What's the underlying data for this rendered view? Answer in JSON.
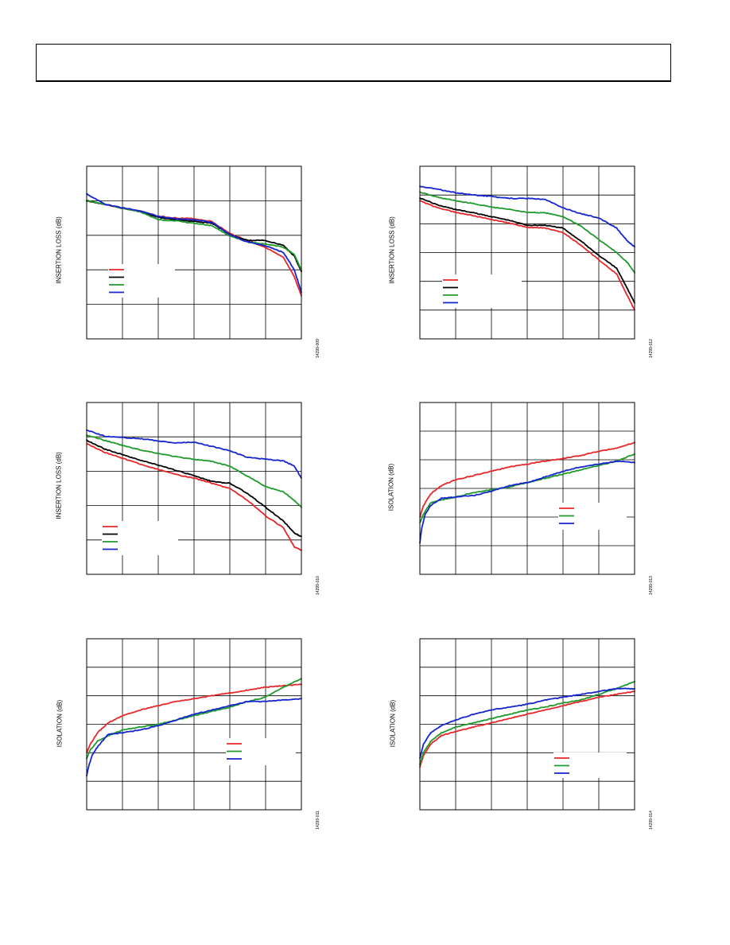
{
  "colors": {
    "red": "#e8262a",
    "black": "#000000",
    "green": "#1e9a2b",
    "blue": "#1525d0"
  },
  "chart_data": [
    {
      "type": "line",
      "ylabel": "INSERTION LOSS (dB)",
      "fig_id": "14299-009",
      "xlim": [
        0,
        6
      ],
      "ylim": [
        -5,
        0
      ],
      "grid": true,
      "legend": "lower-left",
      "series": [
        {
          "color": "red",
          "x": [
            0,
            0.5,
            1,
            1.5,
            2,
            2.5,
            3,
            3.5,
            4,
            4.5,
            5,
            5.5,
            5.8,
            6
          ],
          "y": [
            -1.0,
            -1.1,
            -1.22,
            -1.3,
            -1.45,
            -1.5,
            -1.52,
            -1.6,
            -1.95,
            -2.15,
            -2.35,
            -2.65,
            -3.2,
            -3.75
          ]
        },
        {
          "color": "black",
          "x": [
            0,
            0.5,
            1,
            1.5,
            2,
            2.5,
            3,
            3.5,
            4,
            4.5,
            5,
            5.5,
            5.8,
            6
          ],
          "y": [
            -1.0,
            -1.1,
            -1.22,
            -1.3,
            -1.48,
            -1.55,
            -1.6,
            -1.65,
            -1.98,
            -2.15,
            -2.15,
            -2.3,
            -2.6,
            -3.05
          ]
        },
        {
          "color": "green",
          "x": [
            0,
            0.5,
            1,
            1.5,
            2,
            2.5,
            3,
            3.5,
            4,
            4.5,
            5,
            5.5,
            5.8,
            6
          ],
          "y": [
            -1.0,
            -1.1,
            -1.22,
            -1.32,
            -1.55,
            -1.58,
            -1.65,
            -1.72,
            -2.02,
            -2.2,
            -2.25,
            -2.35,
            -2.55,
            -3.0
          ]
        },
        {
          "color": "blue",
          "x": [
            0,
            0.5,
            1,
            1.5,
            2,
            2.5,
            3,
            3.5,
            4,
            4.5,
            5,
            5.5,
            5.8,
            6
          ],
          "y": [
            -0.8,
            -1.1,
            -1.2,
            -1.3,
            -1.45,
            -1.52,
            -1.55,
            -1.62,
            -1.98,
            -2.2,
            -2.3,
            -2.5,
            -3.0,
            -3.65
          ]
        }
      ]
    },
    {
      "type": "line",
      "ylabel": "INSERTION LOSS (dB)",
      "fig_id": "14299-012",
      "xlim": [
        0,
        6
      ],
      "ylim": [
        -6,
        0
      ],
      "grid": true,
      "legend": "lower-left",
      "series": [
        {
          "color": "red",
          "x": [
            0,
            0.5,
            1,
            1.5,
            2,
            2.5,
            3,
            3.5,
            4,
            4.5,
            5,
            5.5,
            5.8,
            6
          ],
          "y": [
            -1.2,
            -1.45,
            -1.6,
            -1.72,
            -1.85,
            -1.98,
            -2.12,
            -2.15,
            -2.3,
            -2.75,
            -3.25,
            -3.75,
            -4.5,
            -5.0
          ]
        },
        {
          "color": "black",
          "x": [
            0,
            0.5,
            1,
            1.5,
            2,
            2.5,
            3,
            3.5,
            4,
            4.5,
            5,
            5.5,
            5.8,
            6
          ],
          "y": [
            -1.1,
            -1.35,
            -1.5,
            -1.62,
            -1.75,
            -1.88,
            -2.05,
            -2.05,
            -2.15,
            -2.6,
            -3.1,
            -3.55,
            -4.25,
            -4.75
          ]
        },
        {
          "color": "green",
          "x": [
            0,
            0.5,
            1,
            1.5,
            2,
            2.5,
            3,
            3.5,
            4,
            4.5,
            5,
            5.5,
            5.8,
            6
          ],
          "y": [
            -0.9,
            -1.08,
            -1.2,
            -1.3,
            -1.42,
            -1.5,
            -1.6,
            -1.62,
            -1.75,
            -2.08,
            -2.55,
            -3.0,
            -3.35,
            -3.7
          ]
        },
        {
          "color": "blue",
          "x": [
            0,
            0.5,
            1,
            1.5,
            2,
            2.5,
            3,
            3.5,
            4,
            4.5,
            5,
            5.5,
            5.8,
            6
          ],
          "y": [
            -0.7,
            -0.8,
            -0.92,
            -1.0,
            -1.05,
            -1.12,
            -1.12,
            -1.15,
            -1.45,
            -1.65,
            -1.8,
            -2.15,
            -2.6,
            -2.8
          ]
        }
      ]
    },
    {
      "type": "line",
      "ylabel": "INSERTION LOSS (dB)",
      "fig_id": "14299-010",
      "xlim": [
        0,
        6
      ],
      "ylim": [
        -5,
        0
      ],
      "grid": true,
      "legend": "lower-left",
      "series": [
        {
          "color": "red",
          "x": [
            0,
            0.5,
            1,
            1.5,
            2,
            2.5,
            3,
            3.5,
            4,
            4.5,
            5,
            5.5,
            5.8,
            6
          ],
          "y": [
            -1.2,
            -1.45,
            -1.62,
            -1.8,
            -1.95,
            -2.1,
            -2.2,
            -2.35,
            -2.5,
            -2.85,
            -3.3,
            -3.65,
            -4.2,
            -4.3
          ]
        },
        {
          "color": "black",
          "x": [
            0,
            0.5,
            1,
            1.5,
            2,
            2.5,
            3,
            3.5,
            4,
            4.5,
            5,
            5.5,
            5.8,
            6
          ],
          "y": [
            -1.1,
            -1.35,
            -1.52,
            -1.68,
            -1.82,
            -1.98,
            -2.12,
            -2.3,
            -2.35,
            -2.65,
            -3.05,
            -3.45,
            -3.8,
            -3.9
          ]
        },
        {
          "color": "green",
          "x": [
            0,
            0.5,
            1,
            1.5,
            2,
            2.5,
            3,
            3.5,
            4,
            4.5,
            5,
            5.5,
            5.8,
            6
          ],
          "y": [
            -0.95,
            -1.1,
            -1.25,
            -1.38,
            -1.48,
            -1.58,
            -1.65,
            -1.72,
            -1.85,
            -2.15,
            -2.45,
            -2.6,
            -2.85,
            -3.05
          ]
        },
        {
          "color": "blue",
          "x": [
            0,
            0.5,
            1,
            1.5,
            2,
            2.5,
            3,
            3.5,
            4,
            4.5,
            5,
            5.5,
            5.8,
            6
          ],
          "y": [
            -0.8,
            -0.98,
            -1.02,
            -1.05,
            -1.12,
            -1.18,
            -1.15,
            -1.28,
            -1.4,
            -1.6,
            -1.65,
            -1.7,
            -1.85,
            -2.2
          ]
        }
      ]
    },
    {
      "type": "line",
      "ylabel": "ISOLATION (dB)",
      "fig_id": "14299-013",
      "xlim": [
        0,
        6
      ],
      "ylim": [
        -60,
        0
      ],
      "grid": true,
      "legend": "lower-right",
      "series": [
        {
          "color": "red",
          "x": [
            0,
            0.1,
            0.3,
            0.6,
            1,
            1.5,
            2,
            2.5,
            3,
            3.5,
            4,
            4.5,
            5,
            5.5,
            6
          ],
          "y": [
            -40,
            -36,
            -32,
            -29,
            -27,
            -25.5,
            -24,
            -22.5,
            -21.5,
            -20.5,
            -19.5,
            -18.5,
            -17,
            -16,
            -14
          ]
        },
        {
          "color": "green",
          "x": [
            0,
            0.1,
            0.3,
            0.6,
            1,
            1.5,
            2,
            2.5,
            3,
            3.5,
            4,
            4.5,
            5,
            5.5,
            6
          ],
          "y": [
            -42,
            -39,
            -35,
            -34,
            -33,
            -31.5,
            -30.5,
            -29.5,
            -28,
            -26.5,
            -25,
            -23.5,
            -22,
            -20.5,
            -18
          ]
        },
        {
          "color": "blue",
          "x": [
            0,
            0.05,
            0.15,
            0.3,
            0.6,
            1,
            1.5,
            2,
            2.5,
            3,
            3.5,
            4,
            4.5,
            5,
            5.5,
            6
          ],
          "y": [
            -49,
            -44,
            -39,
            -36,
            -33.5,
            -33,
            -32.5,
            -31,
            -29,
            -28,
            -26,
            -24,
            -22.5,
            -21.5,
            -20.5,
            -21
          ]
        }
      ]
    },
    {
      "type": "line",
      "ylabel": "ISOLATION (dB)",
      "fig_id": "14299-011",
      "xlim": [
        0,
        6
      ],
      "ylim": [
        -60,
        0
      ],
      "grid": true,
      "legend": "lower-right",
      "series": [
        {
          "color": "red",
          "x": [
            0,
            0.1,
            0.3,
            0.6,
            1,
            1.5,
            2,
            2.5,
            3,
            3.5,
            4,
            4.5,
            5,
            5.5,
            6
          ],
          "y": [
            -40,
            -37,
            -33,
            -29.5,
            -27,
            -25,
            -23.5,
            -22,
            -21,
            -20,
            -19,
            -18,
            -17,
            -16.5,
            -16
          ]
        },
        {
          "color": "green",
          "x": [
            0,
            0.1,
            0.3,
            0.6,
            1,
            1.5,
            2,
            2.5,
            3,
            3.5,
            4,
            4.5,
            5,
            5.5,
            6
          ],
          "y": [
            -42,
            -39,
            -36,
            -34,
            -32,
            -31,
            -30,
            -28.5,
            -27,
            -25.5,
            -24,
            -22,
            -20.5,
            -17,
            -14
          ]
        },
        {
          "color": "blue",
          "x": [
            0,
            0.05,
            0.15,
            0.3,
            0.6,
            1,
            1.5,
            2,
            2.5,
            3,
            3.5,
            4,
            4.5,
            5,
            5.5,
            6
          ],
          "y": [
            -48,
            -45,
            -41,
            -38,
            -33.5,
            -33,
            -32,
            -30.5,
            -28.5,
            -26.5,
            -25,
            -23.5,
            -22,
            -22,
            -21.5,
            -21
          ]
        }
      ]
    },
    {
      "type": "line",
      "ylabel": "ISOLATION (dB)",
      "fig_id": "14299-014",
      "xlim": [
        0,
        6
      ],
      "ylim": [
        -60,
        0
      ],
      "grid": true,
      "legend": "lower-right",
      "series": [
        {
          "color": "red",
          "x": [
            0,
            0.1,
            0.3,
            0.6,
            1,
            1.5,
            2,
            2.5,
            3,
            3.5,
            4,
            4.5,
            5,
            5.5,
            6
          ],
          "y": [
            -45,
            -41,
            -37,
            -34,
            -32.5,
            -31,
            -29.5,
            -28,
            -26.5,
            -25,
            -23.5,
            -22,
            -20.5,
            -19.5,
            -18.5
          ]
        },
        {
          "color": "green",
          "x": [
            0,
            0.1,
            0.3,
            0.6,
            1,
            1.5,
            2,
            2.5,
            3,
            3.5,
            4,
            4.5,
            5,
            5.5,
            6
          ],
          "y": [
            -44,
            -40,
            -36,
            -33,
            -31,
            -29.5,
            -28,
            -26.5,
            -25,
            -24,
            -22.5,
            -21.5,
            -19.5,
            -17.5,
            -15
          ]
        },
        {
          "color": "blue",
          "x": [
            0,
            0.1,
            0.3,
            0.6,
            1,
            1.5,
            2,
            2.5,
            3,
            3.5,
            4,
            4.5,
            5,
            5.5,
            6
          ],
          "y": [
            -42,
            -37,
            -33,
            -30.5,
            -28.5,
            -26.5,
            -25,
            -24,
            -23,
            -21.5,
            -20.5,
            -19.5,
            -18.5,
            -17.5,
            -17.5
          ]
        }
      ]
    }
  ]
}
